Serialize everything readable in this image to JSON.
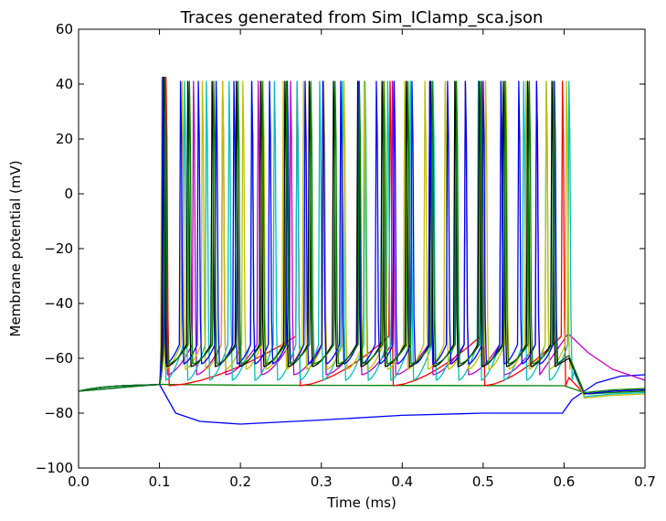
{
  "chart_data": {
    "type": "line",
    "title": "Traces generated from Sim_IClamp_sca.json",
    "xlabel": "Time (ms)",
    "ylabel": "Membrane potential (mV)",
    "xlim": [
      0.0,
      0.7
    ],
    "ylim": [
      -100,
      60
    ],
    "xticks": [
      0.0,
      0.1,
      0.2,
      0.3,
      0.4,
      0.5,
      0.6,
      0.7
    ],
    "xtick_labels": [
      "0.0",
      "0.1",
      "0.2",
      "0.3",
      "0.4",
      "0.5",
      "0.6",
      "0.7"
    ],
    "yticks": [
      -100,
      -80,
      -60,
      -40,
      -20,
      0,
      20,
      40,
      60
    ],
    "ytick_labels": [
      "−100",
      "−80",
      "−60",
      "−40",
      "−20",
      "0",
      "20",
      "40",
      "60"
    ],
    "grid": false,
    "legend": "none",
    "series": [
      {
        "color": "#0000ff",
        "points": [
          [
            0.0,
            -72
          ],
          [
            0.1,
            -69.5
          ],
          [
            0.12,
            -80
          ],
          [
            0.15,
            -83
          ],
          [
            0.2,
            -84
          ],
          [
            0.3,
            -82.5
          ],
          [
            0.4,
            -80.8
          ],
          [
            0.5,
            -80
          ],
          [
            0.598,
            -80
          ],
          [
            0.61,
            -75
          ],
          [
            0.64,
            -69
          ],
          [
            0.67,
            -66.5
          ],
          [
            0.7,
            -66
          ]
        ]
      },
      {
        "color": "#008000",
        "points": [
          [
            0.0,
            -72
          ],
          [
            0.1,
            -69.5
          ],
          [
            0.2,
            -69.8
          ],
          [
            0.4,
            -69.9
          ],
          [
            0.6,
            -70
          ],
          [
            0.63,
            -73
          ],
          [
            0.66,
            -72.5
          ],
          [
            0.7,
            -72
          ]
        ]
      },
      {
        "color": "#ff0000",
        "spike_times": [
          0.108,
          0.27,
          0.385,
          0.498,
          0.598
        ],
        "isi_trough": -70,
        "pre_spike": -52,
        "end_value": -72
      },
      {
        "color": "#bf00bf",
        "spike_times": [
          0.106,
          0.142,
          0.178,
          0.222,
          0.262,
          0.302,
          0.346,
          0.388,
          0.434,
          0.478,
          0.522,
          0.566
        ],
        "isi_trough": -66,
        "pre_spike": -55,
        "end_value": -70,
        "tail": [
          [
            0.605,
            -51
          ],
          [
            0.63,
            -58
          ],
          [
            0.66,
            -64
          ],
          [
            0.7,
            -68
          ]
        ]
      },
      {
        "color": "#00bfbf",
        "spike_times": [
          0.104,
          0.131,
          0.158,
          0.186,
          0.214,
          0.242,
          0.27,
          0.298,
          0.326,
          0.354,
          0.382,
          0.41,
          0.438,
          0.466,
          0.494,
          0.522,
          0.55,
          0.578,
          0.606
        ],
        "isi_trough": -68,
        "pre_spike": -55,
        "end_value": -73
      },
      {
        "color": "#bfbf00",
        "spike_times": [
          0.103,
          0.128,
          0.153,
          0.178,
          0.203,
          0.228,
          0.253,
          0.278,
          0.303,
          0.328,
          0.353,
          0.378,
          0.403,
          0.428,
          0.453,
          0.478,
          0.503,
          0.528,
          0.553,
          0.578,
          0.603
        ],
        "isi_trough": -64,
        "pre_spike": -55,
        "end_value": -73.5
      },
      {
        "color": "#000000",
        "spike_times": [
          0.105,
          0.135,
          0.165,
          0.195,
          0.225,
          0.255,
          0.285,
          0.315,
          0.345,
          0.375,
          0.405,
          0.435,
          0.465,
          0.495,
          0.525,
          0.555,
          0.585
        ],
        "isi_trough": -63,
        "pre_spike": -55,
        "end_value": -72
      },
      {
        "color": "#0000ff",
        "spike_times": [
          0.104,
          0.126,
          0.148,
          0.17,
          0.192,
          0.214,
          0.236,
          0.258,
          0.28,
          0.302,
          0.324,
          0.346,
          0.368,
          0.39,
          0.412,
          0.434,
          0.456,
          0.478,
          0.5,
          0.522,
          0.544,
          0.566,
          0.588
        ],
        "isi_trough": -62,
        "pre_spike": -55,
        "end_value": -72
      },
      {
        "color": "#008000",
        "spike_times": [
          0.107,
          0.137,
          0.167,
          0.197,
          0.227,
          0.257,
          0.287,
          0.317,
          0.347,
          0.377,
          0.407,
          0.437,
          0.467,
          0.497,
          0.527,
          0.557,
          0.587
        ],
        "isi_trough": -62,
        "pre_spike": -55,
        "end_value": -71.5
      }
    ]
  }
}
